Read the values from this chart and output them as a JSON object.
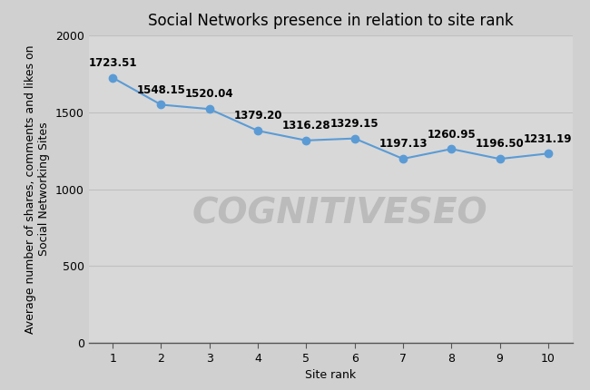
{
  "title": "Social Networks presence in relation to site rank",
  "xlabel": "Site rank",
  "ylabel": "Average number of shares, comments and likes on\nSocial Networking Sites",
  "x": [
    1,
    2,
    3,
    4,
    5,
    6,
    7,
    8,
    9,
    10
  ],
  "y": [
    1723.51,
    1548.15,
    1520.04,
    1379.2,
    1316.28,
    1329.15,
    1197.13,
    1260.95,
    1196.5,
    1231.19
  ],
  "labels": [
    "1723.51",
    "1548.15",
    "1520.04",
    "1379.20",
    "1316.28",
    "1329.15",
    "1197.13",
    "1260.95",
    "1196.50",
    "1231.19"
  ],
  "line_color": "#5b9bd5",
  "marker_color": "#5b9bd5",
  "background_color": "#d0d0d0",
  "plot_bg_color": "#d8d8d8",
  "watermark_text": "COGNITIVESEO",
  "watermark_color": "#bbbbbb",
  "ylim": [
    0,
    2000
  ],
  "yticks": [
    0,
    500,
    1000,
    1500,
    2000
  ],
  "title_fontsize": 12,
  "label_fontsize": 8.5,
  "axis_label_fontsize": 9,
  "tick_fontsize": 9
}
